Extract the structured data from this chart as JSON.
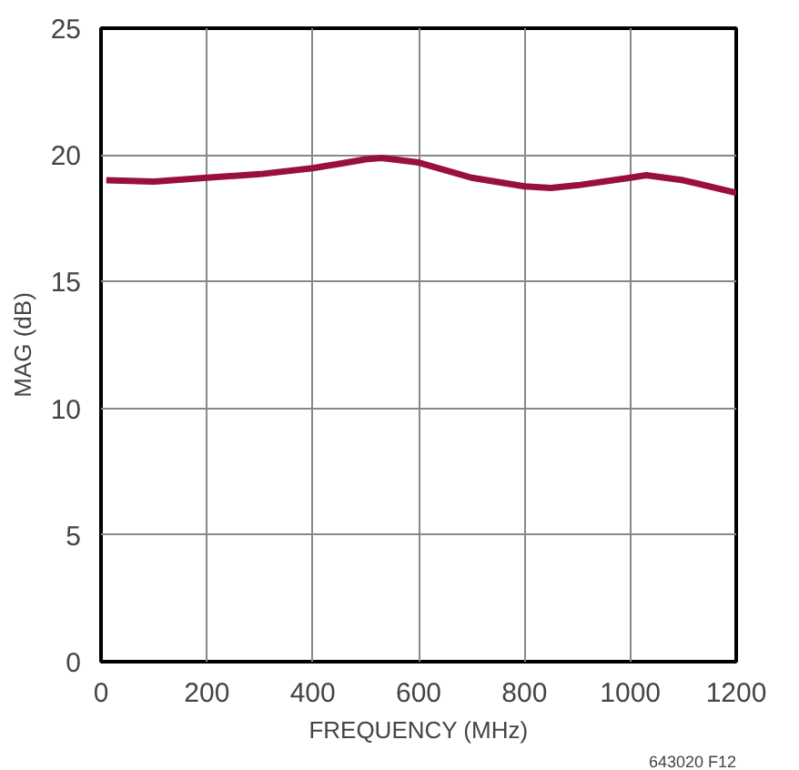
{
  "chart_data": {
    "type": "line",
    "xlabel": "FREQUENCY (MHz)",
    "ylabel": "MAG (dB)",
    "annotations": [
      "643020 F12"
    ],
    "x": [
      10,
      100,
      200,
      300,
      400,
      450,
      500,
      530,
      600,
      700,
      800,
      850,
      900,
      1000,
      1030,
      1100,
      1200
    ],
    "series": [
      {
        "color": "#990f3d",
        "values": [
          19.0,
          18.95,
          19.1,
          19.24,
          19.48,
          19.65,
          19.83,
          19.88,
          19.7,
          19.1,
          18.76,
          18.7,
          18.8,
          19.1,
          19.2,
          19.0,
          18.5
        ]
      }
    ],
    "xlim": [
      0,
      1200
    ],
    "ylim": [
      0,
      25
    ],
    "xticks": [
      0,
      200,
      400,
      600,
      800,
      1000,
      1200
    ],
    "yticks": [
      0,
      5,
      10,
      15,
      20,
      25
    ],
    "grid": true,
    "line_style": "solid"
  }
}
